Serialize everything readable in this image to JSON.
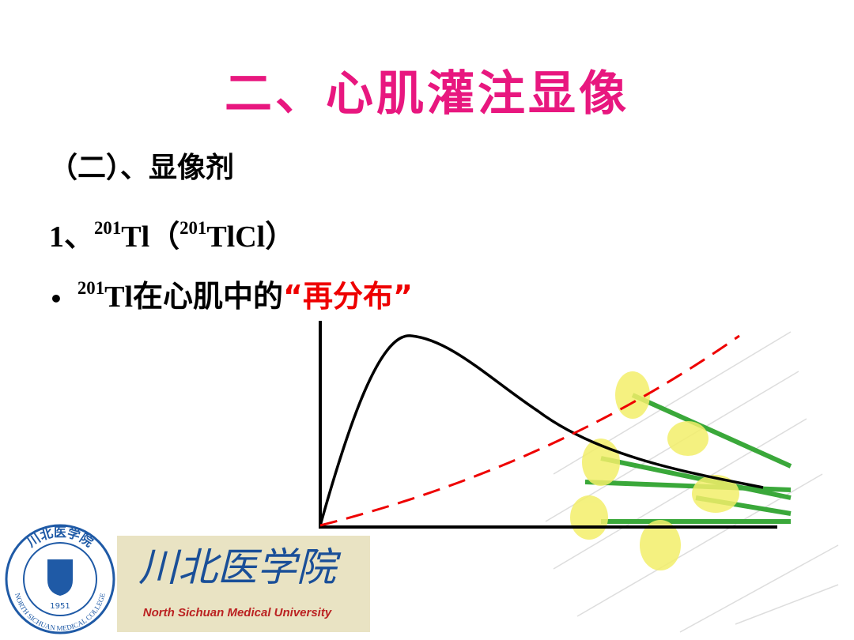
{
  "title": "二、心肌灌注显像",
  "subtitle": "（二）、显像剂",
  "line1": {
    "number": "1、",
    "sup1": "201",
    "el1": "Tl（",
    "sup2": "201",
    "el2": "TlCl）"
  },
  "bullet": {
    "marker": "•",
    "sup": "201",
    "el": "Tl",
    "text": "在心肌中的",
    "highlight": "“再分布”"
  },
  "logo": {
    "seal_top": "川北医学院",
    "seal_bottom": "NORTH SICHUAN MEDICAL COLLEGE",
    "year": "1951",
    "name": "川北医学院",
    "english": "North Sichuan Medical University"
  }
}
